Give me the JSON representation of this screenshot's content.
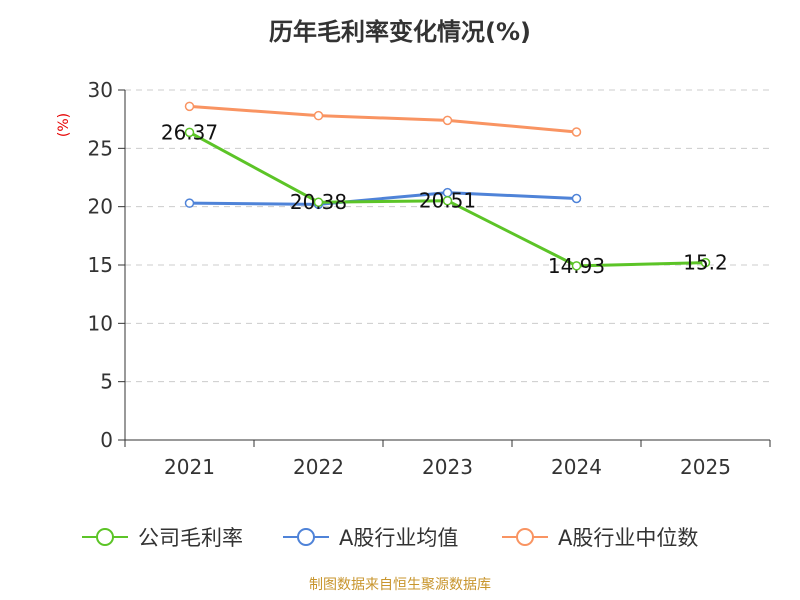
{
  "title": "历年毛利率变化情况(%)",
  "source": "制图数据来自恒生聚源数据库",
  "colors": {
    "company": "#5cc427",
    "industry_avg": "#4f83d8",
    "industry_median": "#f99462",
    "axis": "#333333",
    "grid": "#cccccc",
    "unit": "#e60000"
  },
  "chart_data": {
    "type": "line",
    "title": "历年毛利率变化情况(%)",
    "ylabel": "(%)",
    "xlabel": "",
    "categories": [
      "2021",
      "2022",
      "2023",
      "2024",
      "2025"
    ],
    "y_ticks": [
      0,
      5,
      10,
      15,
      20,
      25,
      30
    ],
    "ylim": [
      0,
      30
    ],
    "grid": true,
    "legend_position": "bottom",
    "series": [
      {
        "name": "公司毛利率",
        "color_key": "company",
        "values": [
          26.37,
          20.38,
          20.51,
          14.93,
          15.2
        ],
        "labels": [
          "26.37",
          "20.38",
          "20.51",
          "14.93",
          "15.2"
        ]
      },
      {
        "name": "A股行业均值",
        "color_key": "industry_avg",
        "values": [
          20.3,
          20.2,
          21.2,
          20.7,
          null
        ],
        "labels": []
      },
      {
        "name": "A股行业中位数",
        "color_key": "industry_median",
        "values": [
          28.6,
          27.8,
          27.4,
          26.4,
          null
        ],
        "labels": []
      }
    ]
  }
}
